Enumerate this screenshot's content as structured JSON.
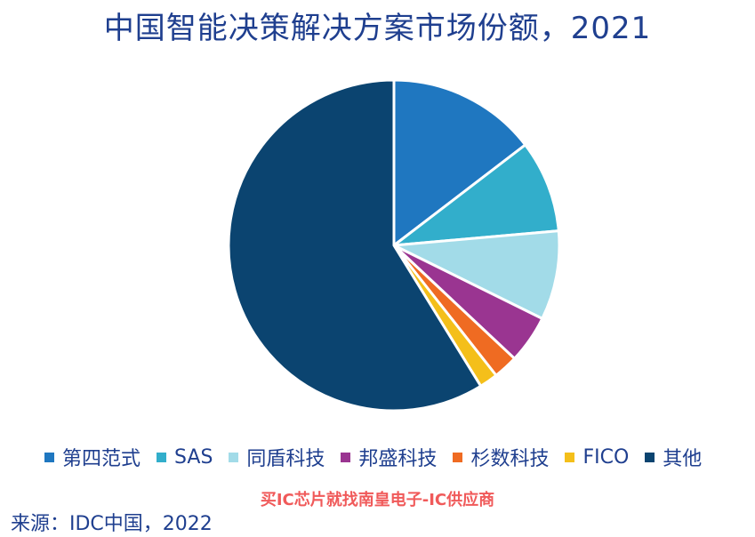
{
  "chart_data": {
    "type": "pie",
    "title": "中国智能决策解决方案市场份额，2021",
    "legend_placement": "bottom",
    "slices": [
      {
        "name": "第四范式",
        "value": 14.6,
        "color": "#1f77c0"
      },
      {
        "name": "SAS",
        "value": 9.0,
        "color": "#32aecb"
      },
      {
        "name": "同盾科技",
        "value": 8.7,
        "color": "#a2dbe8"
      },
      {
        "name": "邦盛科技",
        "value": 4.7,
        "color": "#9a3591"
      },
      {
        "name": "杉数科技",
        "value": 2.4,
        "color": "#ef6b22"
      },
      {
        "name": "FICO",
        "value": 1.8,
        "color": "#f4bf1a"
      },
      {
        "name": "其他",
        "value": 58.8,
        "color": "#0b4470"
      }
    ]
  },
  "watermark": "买IC芯片就找南皇电子-IC供应商",
  "source": "来源：IDC中国，2022"
}
